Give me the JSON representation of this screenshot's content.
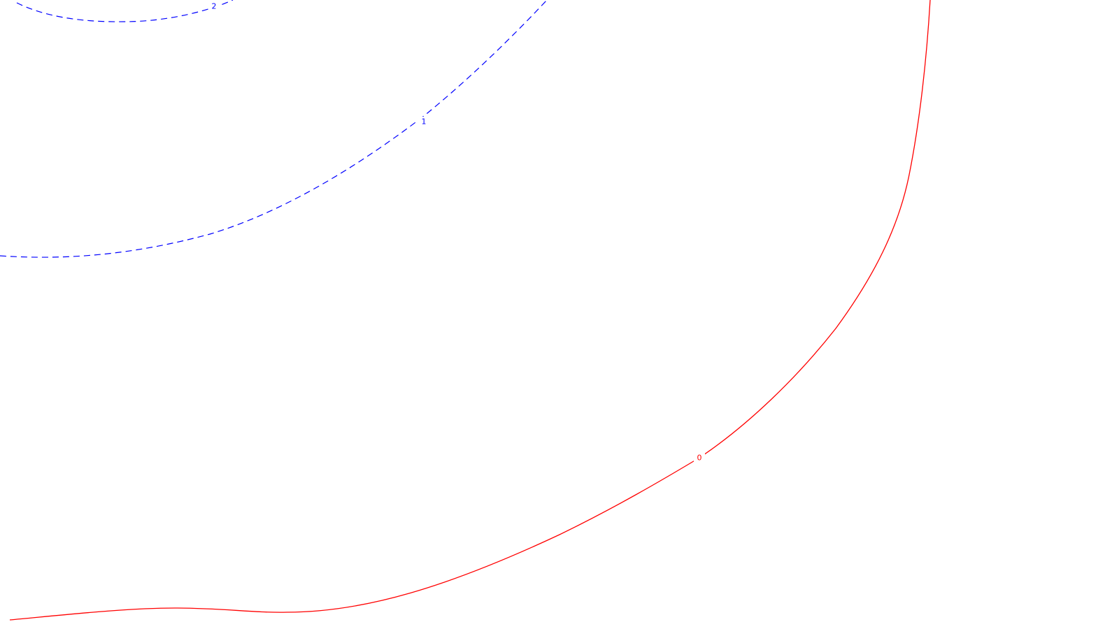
{
  "background_color": "#ffffff",
  "contours": [
    {
      "level_label": "2",
      "color": "#0000ff",
      "style": "dashed"
    },
    {
      "level_label": "1",
      "color": "#0000ff",
      "style": "dashed"
    },
    {
      "level_label": "0",
      "color": "#ff0000",
      "style": "solid"
    }
  ]
}
